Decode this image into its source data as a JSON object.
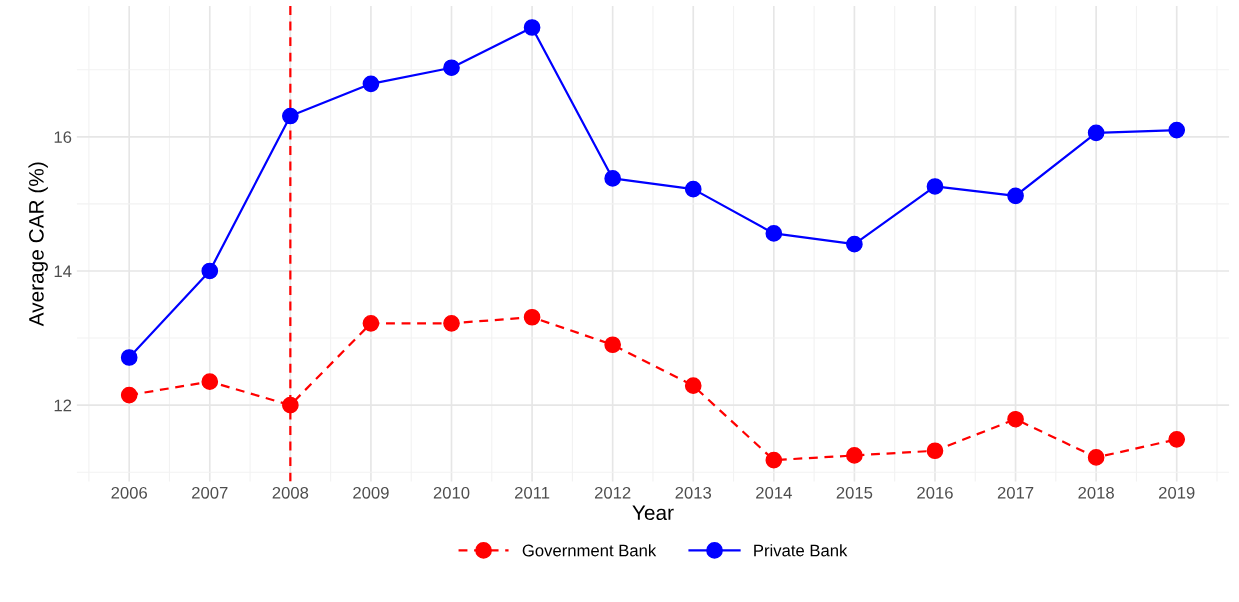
{
  "chart_data": {
    "type": "line",
    "xlabel": "Year",
    "ylabel": "Average CAR (%)",
    "x": [
      2006,
      2007,
      2008,
      2009,
      2010,
      2011,
      2012,
      2013,
      2014,
      2015,
      2016,
      2017,
      2018,
      2019
    ],
    "series": [
      {
        "name": "Government Bank",
        "color": "#ff0000",
        "line_style": "dashed",
        "values": [
          12.15,
          12.35,
          12.0,
          13.22,
          13.22,
          13.31,
          12.9,
          12.29,
          11.18,
          11.25,
          11.32,
          11.79,
          11.22,
          11.49
        ]
      },
      {
        "name": "Private Bank",
        "color": "#0000ff",
        "line_style": "solid",
        "values": [
          12.71,
          14.0,
          16.31,
          16.79,
          17.03,
          17.63,
          15.38,
          15.22,
          14.56,
          14.4,
          15.26,
          15.12,
          16.06,
          16.1
        ]
      }
    ],
    "xlim": [
      2005.35,
      2019.65
    ],
    "xticks": [
      2006,
      2007,
      2008,
      2009,
      2010,
      2011,
      2012,
      2013,
      2014,
      2015,
      2016,
      2017,
      2018,
      2019
    ],
    "ylim": [
      10.86,
      17.95
    ],
    "yticks": [
      12,
      14,
      16
    ],
    "ref_lines": [
      {
        "axis": "x",
        "value": 2008,
        "color": "#ff0000",
        "line_style": "dashed"
      }
    ],
    "marker": "circle",
    "grid": true,
    "legend": "bottom"
  }
}
